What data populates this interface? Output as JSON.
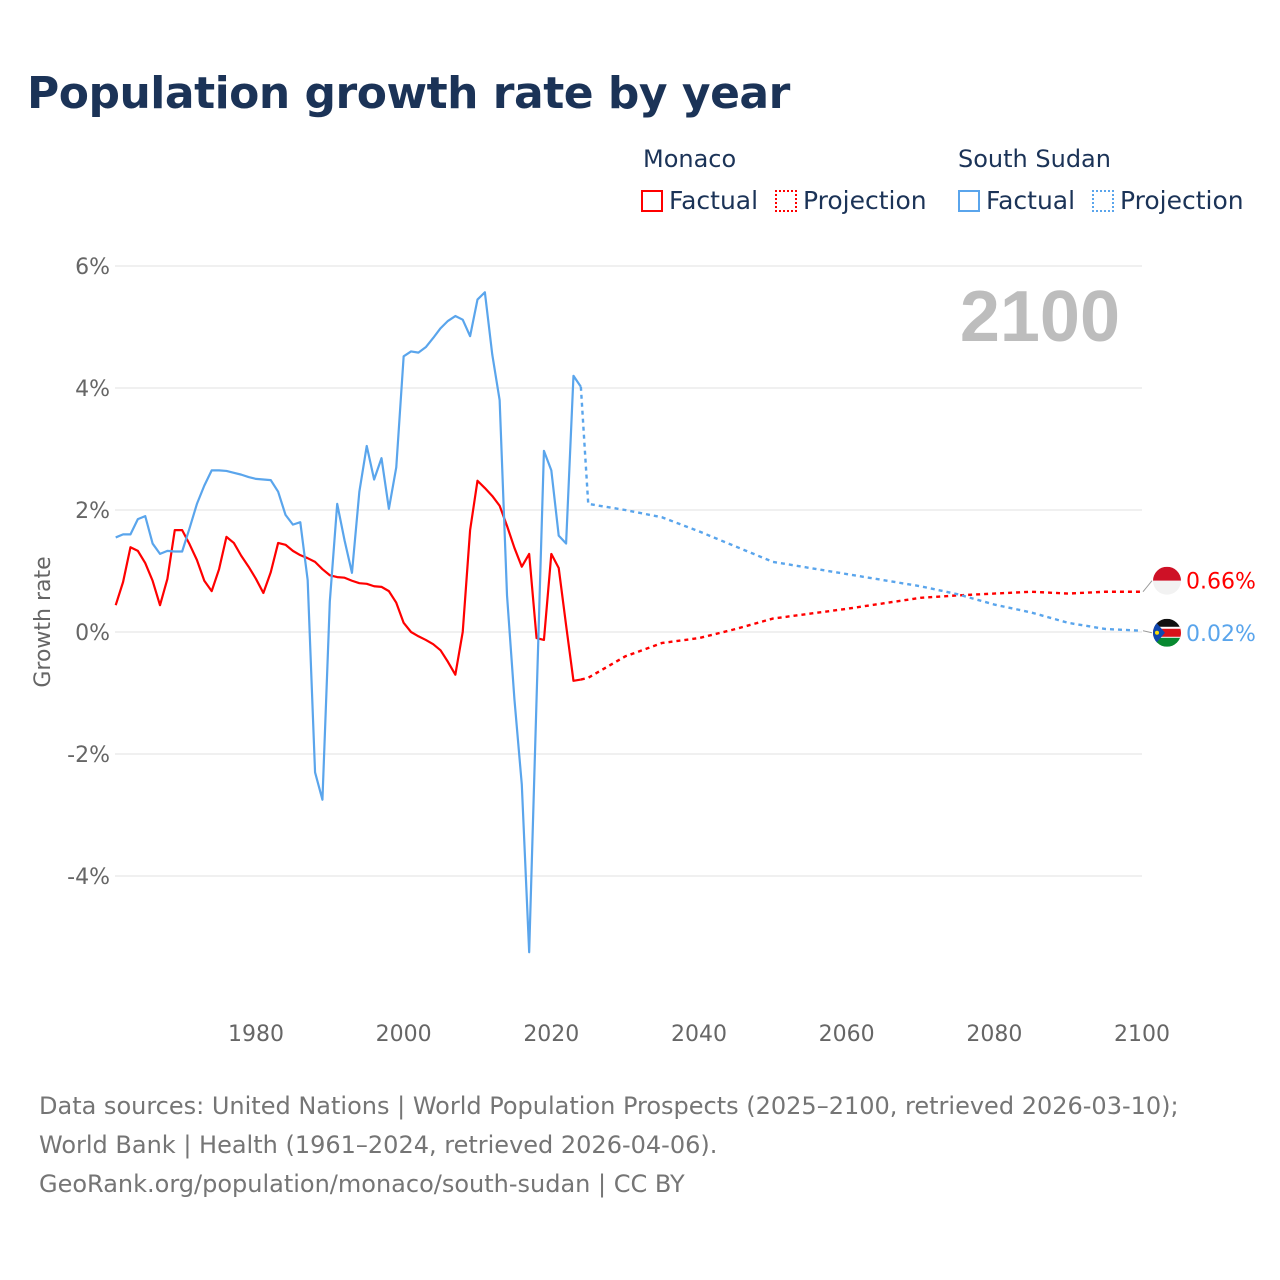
{
  "title": "Population growth rate by year",
  "legend": {
    "groups": [
      {
        "name": "Monaco",
        "factual": "Factual",
        "projection": "Projection",
        "color": "#ff0000"
      },
      {
        "name": "South Sudan",
        "factual": "Factual",
        "projection": "Projection",
        "color": "#5aa5ec"
      }
    ]
  },
  "footer": {
    "sources": "Data sources: United Nations | World Population Prospects (2025–2100, retrieved 2026-03-10); World Bank | Health (1961–2024, retrieved 2026-04-06).",
    "credit": "GeoRank.org/population/monaco/south-sudan | CC BY"
  },
  "chart_data": {
    "type": "line",
    "title": "Population growth rate by year",
    "xlabel": "",
    "ylabel": "Growth rate",
    "year_label": "2100",
    "xlim": [
      1961,
      2100
    ],
    "ylim": [
      -6,
      6
    ],
    "x_ticks": [
      1980,
      2000,
      2020,
      2040,
      2060,
      2080,
      2100
    ],
    "y_ticks": [
      6,
      4,
      2,
      0,
      -2,
      -4
    ],
    "y_tick_labels": [
      "6%",
      "4%",
      "2%",
      "0%",
      "-2%",
      "-4%"
    ],
    "grid": true,
    "series": [
      {
        "name": "Monaco",
        "color": "#ff0000",
        "end_label": "0.66%",
        "factual": {
          "x_start": 1961,
          "values": [
            0.44,
            0.82,
            1.39,
            1.33,
            1.13,
            0.84,
            0.44,
            0.87,
            1.67,
            1.67,
            1.44,
            1.18,
            0.84,
            0.67,
            1.03,
            1.56,
            1.46,
            1.25,
            1.07,
            0.87,
            0.64,
            0.98,
            1.46,
            1.43,
            1.33,
            1.26,
            1.21,
            1.15,
            1.03,
            0.93,
            0.9,
            0.89,
            0.84,
            0.8,
            0.79,
            0.75,
            0.74,
            0.67,
            0.48,
            0.15,
            0.0,
            -0.07,
            -0.13,
            -0.2,
            -0.3,
            -0.49,
            -0.7,
            0.0,
            1.67,
            2.48,
            2.36,
            2.23,
            2.07,
            1.74,
            1.38,
            1.07,
            1.28,
            -0.1,
            -0.13,
            1.28,
            1.05,
            0.11,
            -0.8,
            -0.78
          ]
        },
        "projection": {
          "x": [
            2024,
            2025,
            2030,
            2035,
            2040,
            2045,
            2050,
            2055,
            2060,
            2065,
            2070,
            2075,
            2080,
            2085,
            2090,
            2095,
            2100
          ],
          "values": [
            -0.78,
            -0.75,
            -0.4,
            -0.18,
            -0.1,
            0.05,
            0.22,
            0.3,
            0.38,
            0.47,
            0.56,
            0.6,
            0.63,
            0.66,
            0.63,
            0.66,
            0.66
          ]
        }
      },
      {
        "name": "South Sudan",
        "color": "#5aa5ec",
        "end_label": "0.02%",
        "factual": {
          "x_start": 1961,
          "values": [
            1.55,
            1.6,
            1.6,
            1.85,
            1.9,
            1.45,
            1.28,
            1.33,
            1.32,
            1.32,
            1.7,
            2.1,
            2.4,
            2.65,
            2.65,
            2.64,
            2.61,
            2.58,
            2.54,
            2.51,
            2.5,
            2.49,
            2.3,
            1.92,
            1.76,
            1.8,
            0.85,
            -2.3,
            -2.75,
            0.5,
            2.1,
            1.5,
            0.97,
            2.3,
            3.05,
            2.5,
            2.85,
            2.02,
            2.7,
            4.52,
            4.6,
            4.58,
            4.67,
            4.82,
            4.98,
            5.1,
            5.18,
            5.12,
            4.85,
            5.45,
            5.57,
            4.55,
            3.8,
            0.6,
            -1.1,
            -2.5,
            -5.25,
            -1.1,
            2.97,
            2.65,
            1.58,
            1.45,
            4.2,
            4.02
          ]
        },
        "projection": {
          "x": [
            2024,
            2025,
            2030,
            2035,
            2040,
            2045,
            2050,
            2055,
            2060,
            2065,
            2070,
            2075,
            2080,
            2085,
            2090,
            2095,
            2100
          ],
          "values": [
            4.02,
            2.1,
            2.0,
            1.88,
            1.65,
            1.4,
            1.15,
            1.05,
            0.95,
            0.85,
            0.75,
            0.62,
            0.45,
            0.32,
            0.15,
            0.05,
            0.02
          ]
        }
      }
    ]
  }
}
